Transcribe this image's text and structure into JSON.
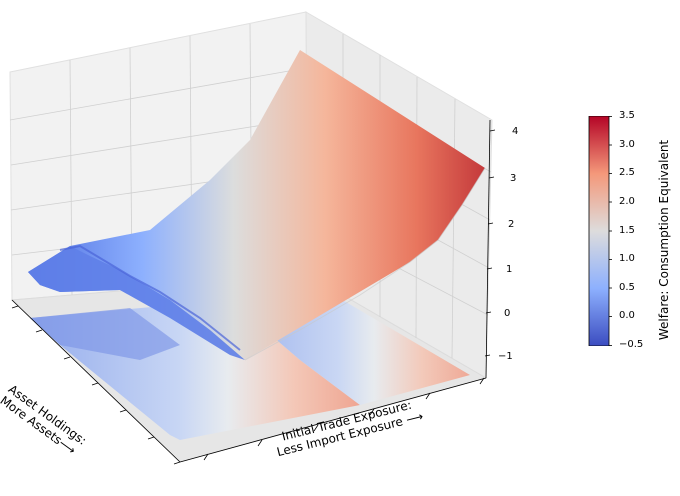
{
  "chart_data": {
    "type": "surface3d",
    "xlabel": "Initial Trade Exposure:\nLess Import Exposure ⟶",
    "ylabel": "Asset Holdings:\nMore Assets⟶",
    "zlabel": "",
    "colorbar_label": "Welfare: Consumption Equivalent",
    "zlim": [
      -1.2,
      4.2
    ],
    "zticks": [
      "−1",
      "0",
      "1",
      "2",
      "3",
      "4"
    ],
    "colorbar_range": [
      -0.5,
      3.5
    ],
    "colorbar_ticks": [
      "−0.5",
      "0.0",
      "0.5",
      "1.0",
      "1.5",
      "2.0",
      "2.5",
      "3.0",
      "3.5"
    ],
    "colormap": "coolwarm",
    "surface_profile": {
      "trade_exposure": [
        0,
        0.1,
        0.2,
        0.3,
        0.4,
        0.5,
        0.6,
        0.7,
        0.8,
        0.9,
        1.0
      ],
      "welfare_low_assets": [
        0.3,
        0.55,
        0.85,
        1.15,
        1.5,
        1.85,
        2.2,
        2.55,
        2.85,
        3.2,
        3.6
      ],
      "welfare_high_assets": [
        0.0,
        0.2,
        0.55,
        0.9,
        1.3,
        1.6,
        1.95,
        2.3,
        2.55,
        2.8,
        3.1
      ]
    }
  }
}
